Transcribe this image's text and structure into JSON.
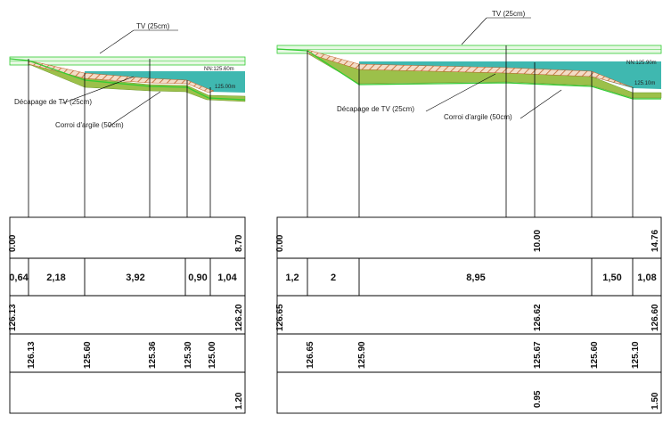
{
  "profiles": [
    {
      "id": "left",
      "labels": {
        "tv": "TV (25cm)",
        "decapage": "Décapage de TV (25cm)",
        "corroi": "Corroi d'argile (50cm)",
        "nn": "NN:125.60m",
        "bottom": "125.00m"
      },
      "distances": [
        "0.00",
        "8.70"
      ],
      "partials": [
        "0,64",
        "2,18",
        "3,92",
        "0,90",
        "1,04"
      ],
      "terrain_ends": [
        "126.13",
        "126.20"
      ],
      "project_levels": [
        "126.13",
        "125.60",
        "125.36",
        "125.30",
        "125.00"
      ],
      "depths": [
        "1.20"
      ]
    },
    {
      "id": "right",
      "labels": {
        "tv": "TV (25cm)",
        "decapage": "Décapage de TV (25cm)",
        "corroi": "Corroi d'argile (50cm)",
        "nn": "NN:125.90m",
        "bottom": "125.10m"
      },
      "distances": [
        "0.00",
        "10.00",
        "14.76"
      ],
      "partials": [
        "1,2",
        "2",
        "8,95",
        "1,50",
        "1,08"
      ],
      "terrain_ends": [
        "126.65",
        "126.62",
        "126.60"
      ],
      "project_levels": [
        "126.65",
        "125.90",
        "125.67",
        "125.60",
        "125.10"
      ],
      "depths": [
        "0.95",
        "1.50"
      ]
    }
  ],
  "colors": {
    "tv_line": "#33cc33",
    "green_fill": "#c7f0c0",
    "water": "#3fb8b0",
    "clay": "#9cc04a",
    "hatch": "#c0602a",
    "grid": "#000000"
  }
}
